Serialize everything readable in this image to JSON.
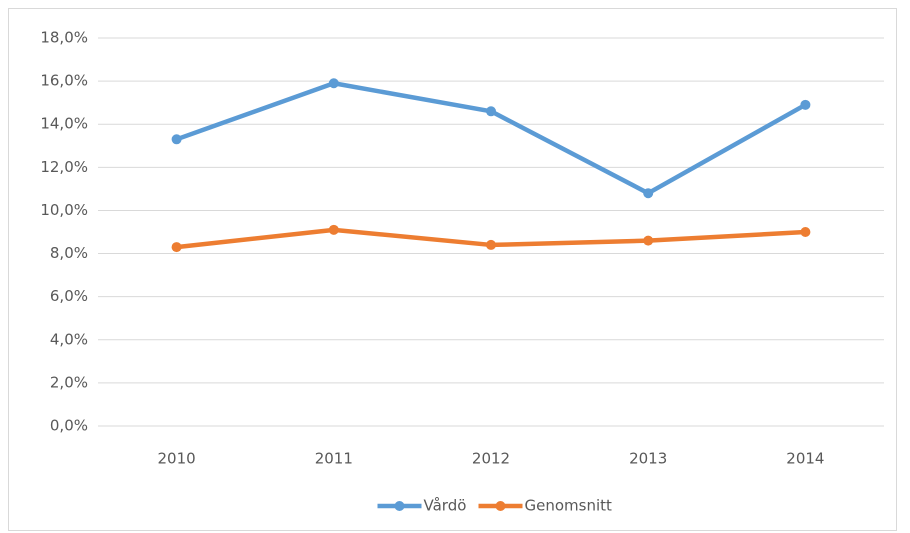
{
  "chart_data": {
    "type": "line",
    "categories": [
      "2010",
      "2011",
      "2012",
      "2013",
      "2014"
    ],
    "series": [
      {
        "name": "Vårdö",
        "color": "#5b9bd5",
        "values": [
          13.3,
          15.9,
          14.6,
          10.8,
          14.9
        ]
      },
      {
        "name": "Genomsnitt",
        "color": "#ed7d31",
        "values": [
          8.3,
          9.1,
          8.4,
          8.6,
          9.0
        ]
      }
    ],
    "ylim": [
      0,
      18
    ],
    "yticks": [
      {
        "value": 0,
        "label": "0,0%"
      },
      {
        "value": 2,
        "label": "2,0%"
      },
      {
        "value": 4,
        "label": "4,0%"
      },
      {
        "value": 6,
        "label": "6,0%"
      },
      {
        "value": 8,
        "label": "8,0%"
      },
      {
        "value": 10,
        "label": "10,0%"
      },
      {
        "value": 12,
        "label": "12,0%"
      },
      {
        "value": 14,
        "label": "14,0%"
      },
      {
        "value": 16,
        "label": "16,0%"
      },
      {
        "value": 18,
        "label": "18,0%"
      }
    ],
    "grid": true,
    "legend": "bottom"
  }
}
